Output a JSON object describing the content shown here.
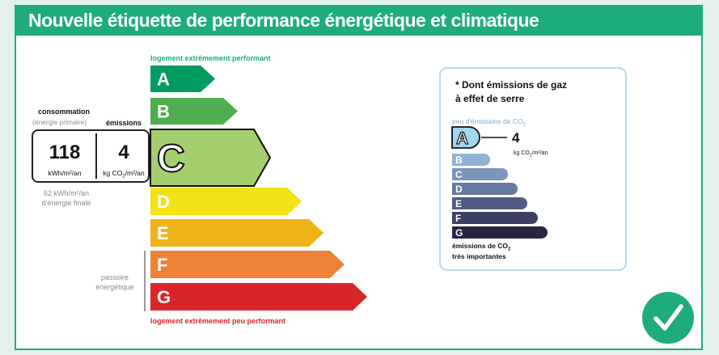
{
  "header": {
    "title": "Nouvelle étiquette de performance énergétique et climatique"
  },
  "scale": {
    "top_caption": "logement extrêmement performant",
    "bottom_caption": "logement extrêmement peu performant",
    "classes": [
      {
        "letter": "A",
        "color": "#009a62"
      },
      {
        "letter": "B",
        "color": "#4fae4f"
      },
      {
        "letter": "C",
        "color": "#a4cf6e"
      },
      {
        "letter": "D",
        "color": "#f1e213"
      },
      {
        "letter": "E",
        "color": "#efb31a"
      },
      {
        "letter": "F",
        "color": "#ee8237"
      },
      {
        "letter": "G",
        "color": "#d9252a"
      }
    ],
    "current_class": "C"
  },
  "left_info": {
    "consommation_label": "consommation",
    "consommation_sub": "(énergie primaire)",
    "emissions_label": "émissions",
    "consommation_value": "118",
    "consommation_unit": "kWh/m²/an",
    "emissions_value": "4",
    "emissions_unit_prefix": "kg CO",
    "emissions_unit_sub": "2",
    "emissions_unit_suffix": "/m²/an",
    "asterisk": "*",
    "final_energy_line1": "62 kWh/m²/an",
    "final_energy_line2": "d'énergie finale",
    "passoire_line1": "passoire",
    "passoire_line2": "énergétique"
  },
  "ghg": {
    "title_line1": "* Dont émissions de gaz",
    "title_line2": "à effet de serre",
    "top_label_prefix": "peu d'émissions de CO",
    "top_label_sub": "2",
    "bottom_label_line1_prefix": "émissions de CO",
    "bottom_label_line1_sub": "2",
    "bottom_label_line2": "très importantes",
    "value": "4",
    "unit_prefix": "kg CO",
    "unit_sub": "2",
    "unit_suffix": "/m²/an",
    "current_class": "A",
    "classes": [
      {
        "letter": "A",
        "color": "#a4d5f1"
      },
      {
        "letter": "B",
        "color": "#8fb3d4"
      },
      {
        "letter": "C",
        "color": "#7996bb"
      },
      {
        "letter": "D",
        "color": "#657aa1"
      },
      {
        "letter": "E",
        "color": "#515b82"
      },
      {
        "letter": "F",
        "color": "#3d3f63"
      },
      {
        "letter": "G",
        "color": "#292443"
      }
    ]
  },
  "status": {
    "icon": "checkmark-icon",
    "color": "#1fac7b"
  }
}
